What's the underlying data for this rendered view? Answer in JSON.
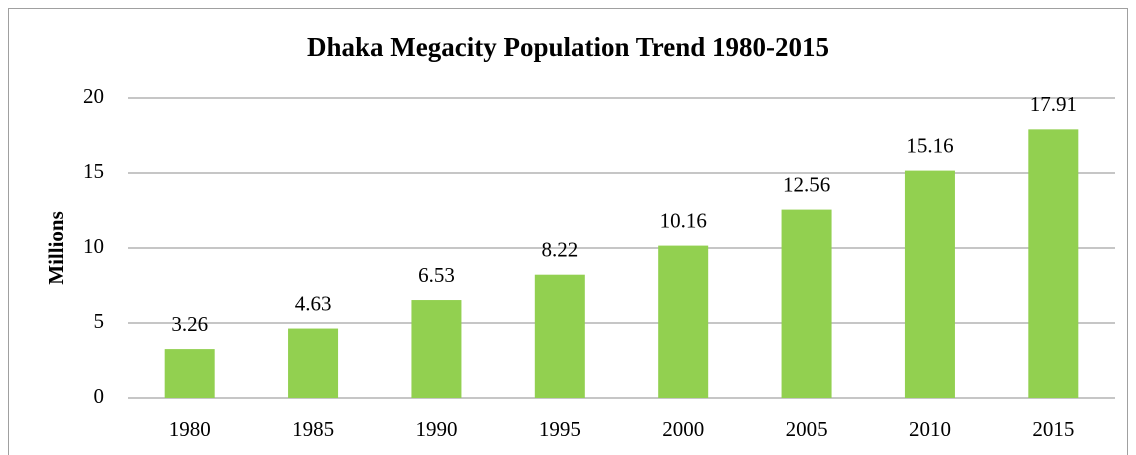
{
  "chart_data": {
    "type": "bar",
    "title": "Dhaka Megacity Population Trend 1980-2015",
    "y_label": "Millions",
    "categories": [
      "1980",
      "1985",
      "1990",
      "1995",
      "2000",
      "2005",
      "2010",
      "2015"
    ],
    "values": [
      3.26,
      4.63,
      6.53,
      8.22,
      10.16,
      12.56,
      15.16,
      17.91
    ],
    "color": "#92d050",
    "ylim": [
      0,
      20
    ],
    "yticks": [
      0,
      5,
      10,
      15,
      20
    ],
    "grid": true
  }
}
